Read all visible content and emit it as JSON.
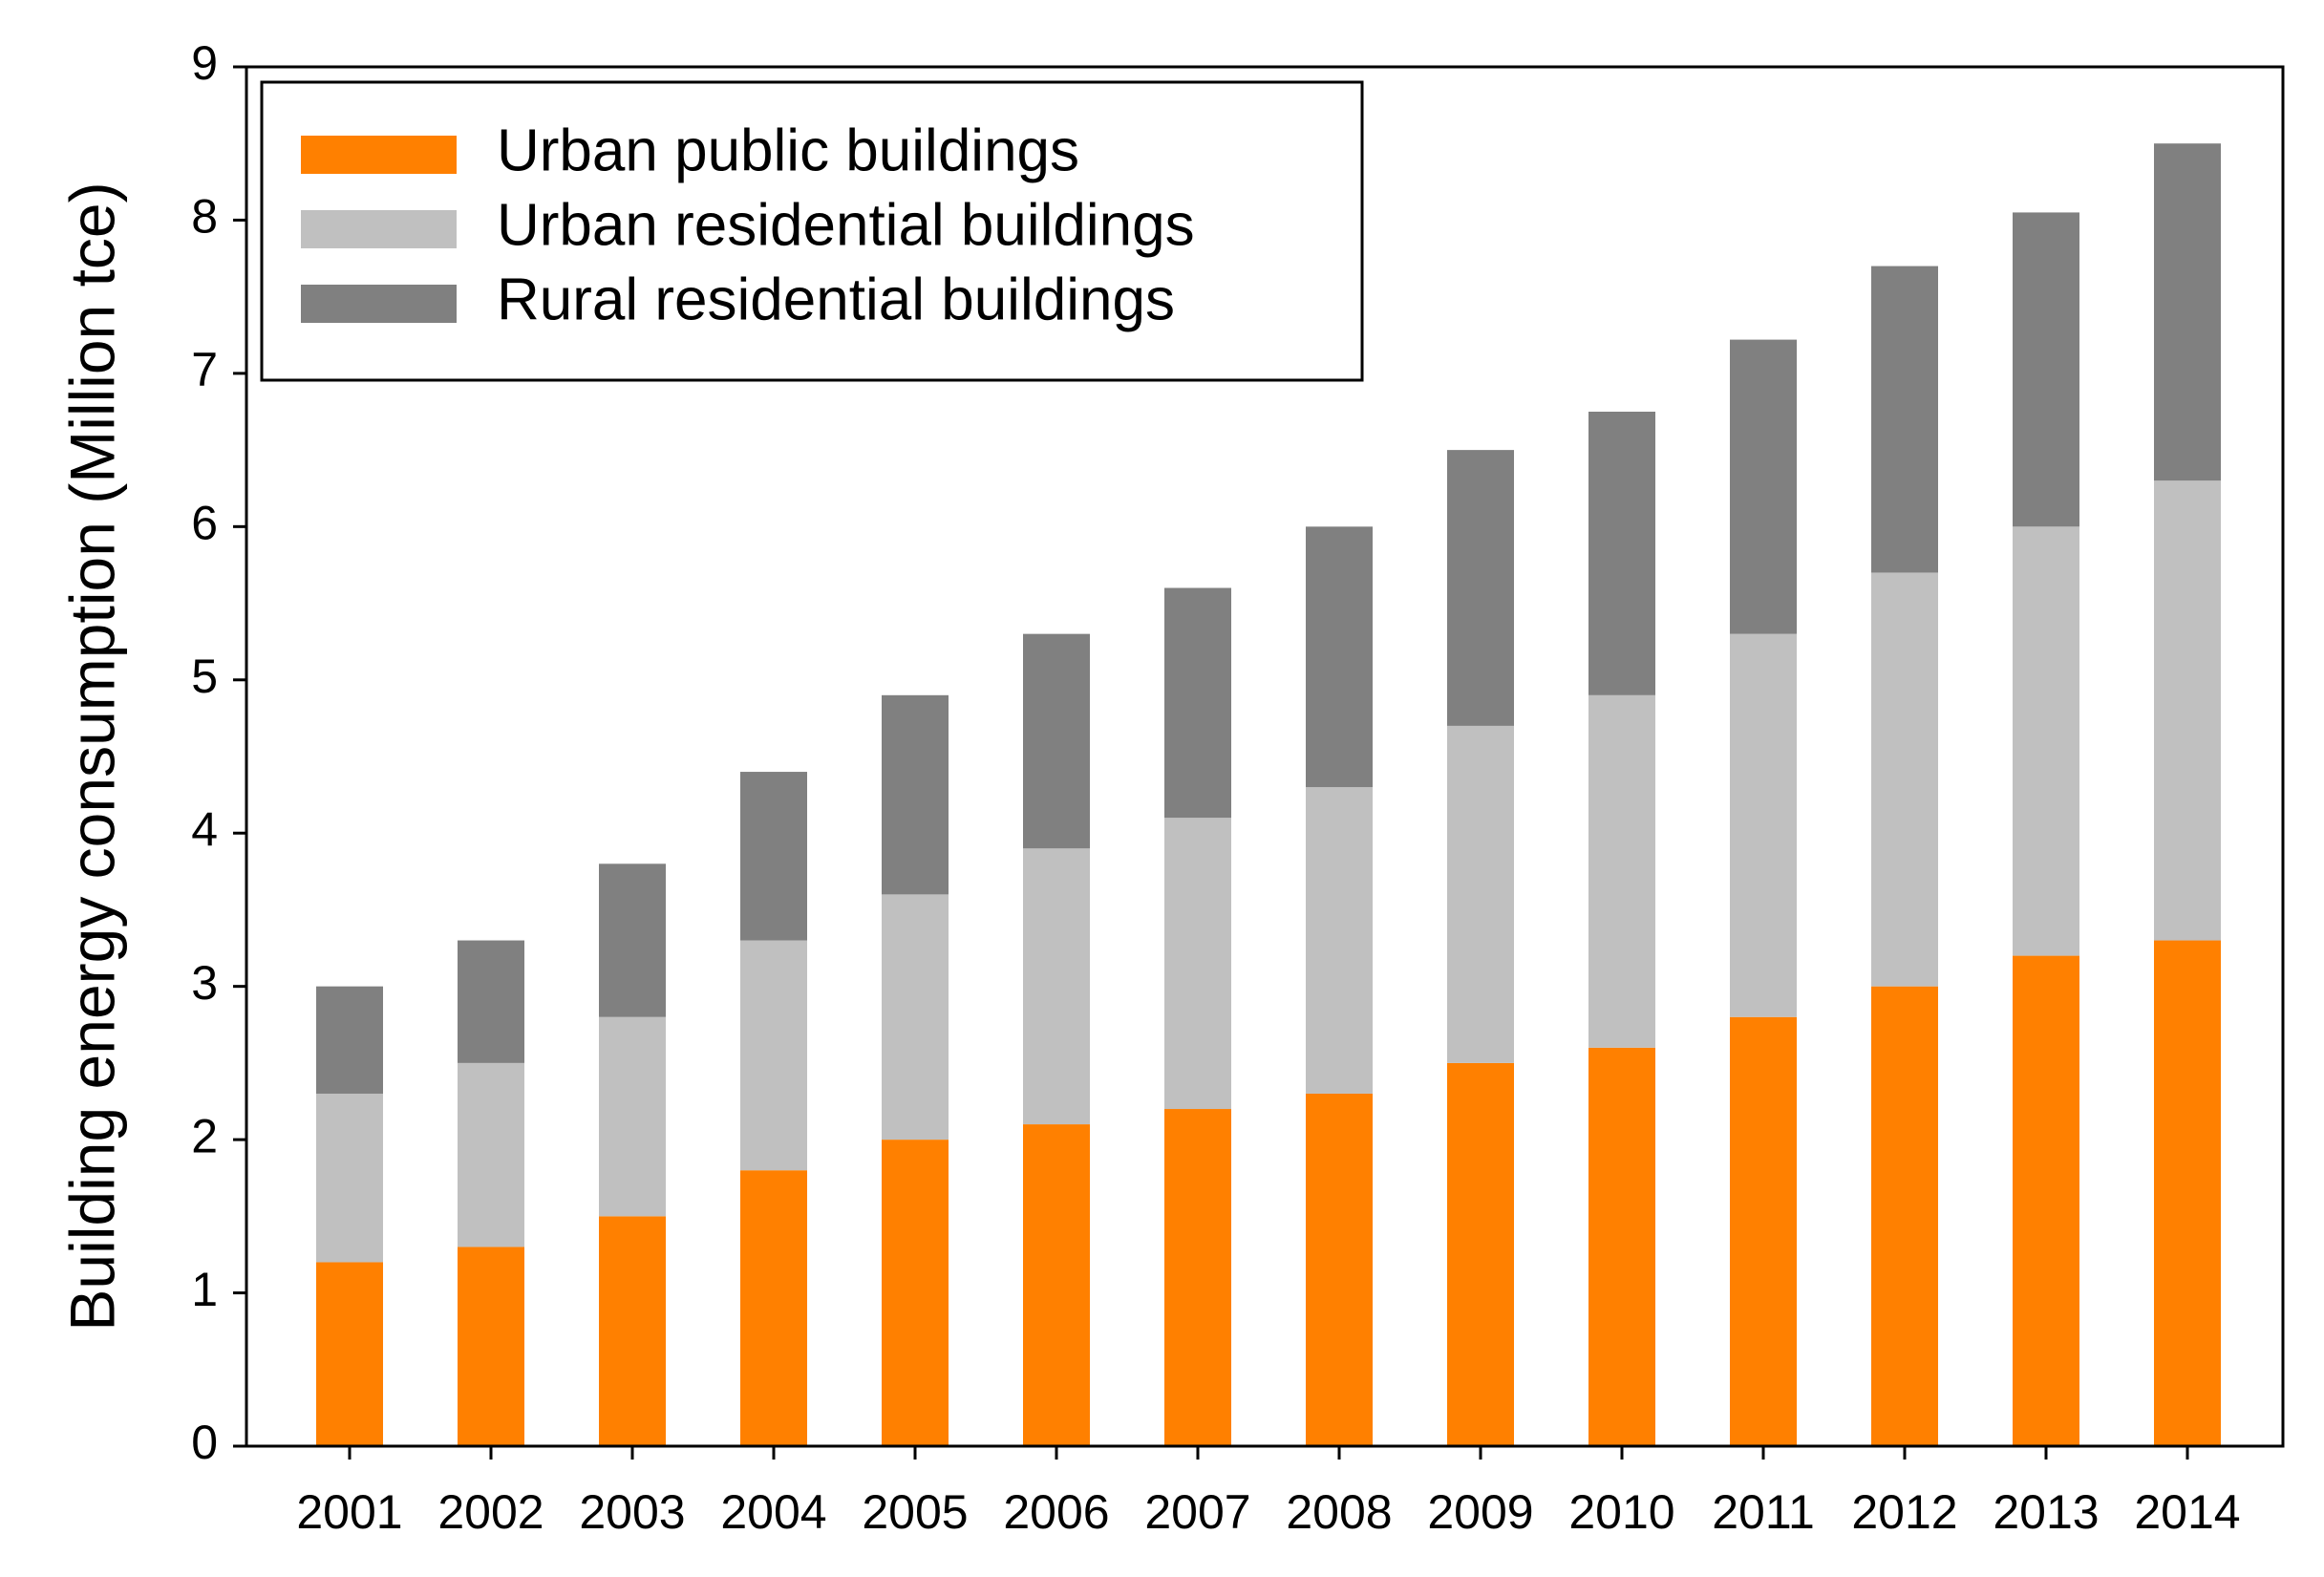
{
  "chart_data": {
    "type": "bar",
    "stacked": true,
    "title": "",
    "xlabel": "",
    "ylabel": "Building energy consumption (Million tce)",
    "ylim": [
      0,
      9
    ],
    "yticks": [
      "0",
      "1",
      "2",
      "3",
      "4",
      "5",
      "6",
      "7",
      "8",
      "9"
    ],
    "categories": [
      "2001",
      "2002",
      "2003",
      "2004",
      "2005",
      "2006",
      "2007",
      "2008",
      "2009",
      "2010",
      "2011",
      "2012",
      "2013",
      "2014"
    ],
    "grid": false,
    "legend_position": "top-left",
    "series": [
      {
        "name": "Urban public buildings",
        "color": "#ff8000",
        "values": [
          1.2,
          1.3,
          1.5,
          1.8,
          2.0,
          2.1,
          2.2,
          2.3,
          2.5,
          2.6,
          2.8,
          3.0,
          3.2,
          3.3
        ]
      },
      {
        "name": "Urban residential buildings",
        "color": "#c0c0c0",
        "values": [
          1.1,
          1.2,
          1.3,
          1.5,
          1.6,
          1.8,
          1.9,
          2.0,
          2.2,
          2.3,
          2.5,
          2.7,
          2.8,
          3.0
        ]
      },
      {
        "name": "Rural residential buildings",
        "color": "#808080",
        "values": [
          0.7,
          0.8,
          1.0,
          1.1,
          1.3,
          1.4,
          1.5,
          1.7,
          1.8,
          1.85,
          1.92,
          2.0,
          2.05,
          2.2
        ]
      }
    ]
  }
}
